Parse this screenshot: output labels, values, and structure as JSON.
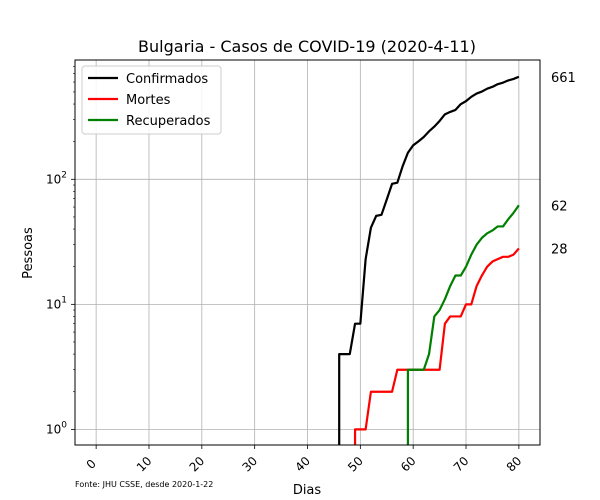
{
  "chart_data": {
    "type": "line",
    "title": "Bulgaria - Casos de COVID-19 (2020-4-11)",
    "xlabel": "Dias",
    "ylabel": "Pessoas",
    "source": "Fonte: JHU CSSE, desde 2020-1-22",
    "yscale": "log",
    "xlim": [
      -4,
      84
    ],
    "ylim": [
      0.75,
      900
    ],
    "grid": true,
    "legend_position": "top-left",
    "x_ticks": [
      {
        "value": 0,
        "label": "0"
      },
      {
        "value": 10,
        "label": "10"
      },
      {
        "value": 20,
        "label": "20"
      },
      {
        "value": 30,
        "label": "30"
      },
      {
        "value": 40,
        "label": "40"
      },
      {
        "value": 50,
        "label": "50"
      },
      {
        "value": 60,
        "label": "60"
      },
      {
        "value": 70,
        "label": "70"
      },
      {
        "value": 80,
        "label": "80"
      }
    ],
    "y_ticks": [
      {
        "value": 1,
        "base": "10",
        "exp": "0"
      },
      {
        "value": 10,
        "base": "10",
        "exp": "1"
      },
      {
        "value": 100,
        "base": "10",
        "exp": "2"
      }
    ],
    "series": [
      {
        "name": "Confirmados",
        "color": "#000000",
        "end_label": "661",
        "points": [
          [
            46,
            0.6
          ],
          [
            46,
            4
          ],
          [
            48,
            4
          ],
          [
            49,
            7
          ],
          [
            50,
            7
          ],
          [
            51,
            23
          ],
          [
            52,
            41
          ],
          [
            53,
            51
          ],
          [
            54,
            52
          ],
          [
            55,
            69
          ],
          [
            56,
            92
          ],
          [
            57,
            94
          ],
          [
            58,
            127
          ],
          [
            59,
            163
          ],
          [
            60,
            187
          ],
          [
            61,
            201
          ],
          [
            62,
            218
          ],
          [
            63,
            242
          ],
          [
            64,
            264
          ],
          [
            65,
            293
          ],
          [
            66,
            331
          ],
          [
            67,
            346
          ],
          [
            68,
            359
          ],
          [
            69,
            399
          ],
          [
            70,
            422
          ],
          [
            71,
            457
          ],
          [
            72,
            485
          ],
          [
            73,
            503
          ],
          [
            74,
            531
          ],
          [
            75,
            549
          ],
          [
            76,
            577
          ],
          [
            77,
            593
          ],
          [
            78,
            618
          ],
          [
            79,
            635
          ],
          [
            80,
            661
          ]
        ]
      },
      {
        "name": "Mortes",
        "color": "#ff0000",
        "end_label": "28",
        "points": [
          [
            49,
            0.6
          ],
          [
            49,
            1
          ],
          [
            51,
            1
          ],
          [
            52,
            2
          ],
          [
            56,
            2
          ],
          [
            57,
            3
          ],
          [
            63,
            3
          ],
          [
            65,
            3
          ],
          [
            66,
            7
          ],
          [
            67,
            8
          ],
          [
            69,
            8
          ],
          [
            70,
            10
          ],
          [
            71,
            10
          ],
          [
            72,
            14
          ],
          [
            73,
            17
          ],
          [
            74,
            20
          ],
          [
            75,
            22
          ],
          [
            76,
            23
          ],
          [
            77,
            24
          ],
          [
            78,
            24
          ],
          [
            79,
            25
          ],
          [
            80,
            28
          ]
        ]
      },
      {
        "name": "Recuperados",
        "color": "#008000",
        "end_label": "62",
        "points": [
          [
            59,
            0.6
          ],
          [
            59,
            3
          ],
          [
            62,
            3
          ],
          [
            63,
            4
          ],
          [
            64,
            8
          ],
          [
            65,
            9
          ],
          [
            66,
            11
          ],
          [
            67,
            14
          ],
          [
            68,
            17
          ],
          [
            69,
            17
          ],
          [
            70,
            20
          ],
          [
            71,
            25
          ],
          [
            72,
            30
          ],
          [
            73,
            34
          ],
          [
            74,
            37
          ],
          [
            75,
            39
          ],
          [
            76,
            42
          ],
          [
            77,
            42
          ],
          [
            78,
            48
          ],
          [
            79,
            54
          ],
          [
            80,
            62
          ]
        ]
      }
    ]
  }
}
